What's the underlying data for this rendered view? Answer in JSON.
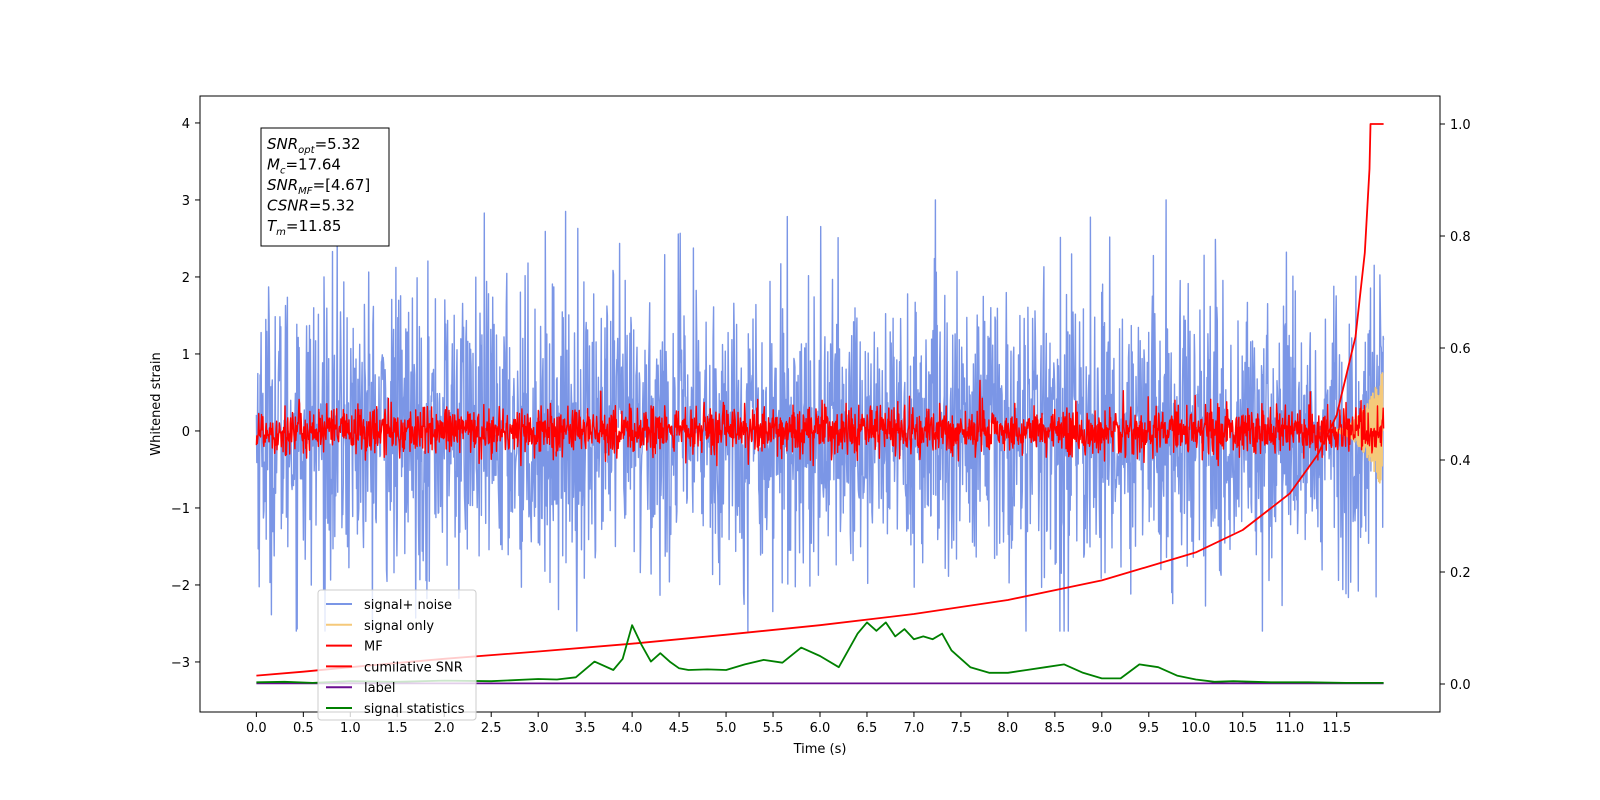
{
  "chart_data": {
    "type": "line",
    "title": "",
    "xlabel": "Time (s)",
    "ylabel": "Whitened strain",
    "y2label": "",
    "xlim": [
      -0.6,
      12.6
    ],
    "ylim": [
      -3.65,
      4.35
    ],
    "y2lim": [
      -0.05,
      1.05
    ],
    "x_ticks": [
      0.0,
      0.5,
      1.0,
      1.5,
      2.0,
      2.5,
      3.0,
      3.5,
      4.0,
      4.5,
      5.0,
      5.5,
      6.0,
      6.5,
      7.0,
      7.5,
      8.0,
      8.5,
      9.0,
      9.5,
      10.0,
      10.5,
      11.0,
      11.5
    ],
    "x_tick_labels": [
      "0.0",
      "0.5",
      "1.0",
      "1.5",
      "2.0",
      "2.5",
      "3.0",
      "3.5",
      "4.0",
      "4.5",
      "5.0",
      "5.5",
      "6.0",
      "6.5",
      "7.0",
      "7.5",
      "8.0",
      "8.5",
      "9.0",
      "9.5",
      "10.0",
      "10.5",
      "11.0",
      "11.5"
    ],
    "y_ticks": [
      -3,
      -2,
      -1,
      0,
      1,
      2,
      3,
      4
    ],
    "y_tick_labels": [
      "−3",
      "−2",
      "−1",
      "0",
      "1",
      "2",
      "3",
      "4"
    ],
    "y2_ticks": [
      0.0,
      0.2,
      0.4,
      0.6,
      0.8,
      1.0
    ],
    "y2_tick_labels": [
      "0.0",
      "0.2",
      "0.4",
      "0.6",
      "0.8",
      "1.0"
    ],
    "grid": false,
    "legend_position": "lower-left",
    "annotation": {
      "lines": [
        {
          "base": "SNR",
          "sub": "opt",
          "rest": "=5.32"
        },
        {
          "base": "M",
          "sub": "c",
          "rest": "=17.64"
        },
        {
          "base": "SNR",
          "sub": "MF",
          "rest": "=[4.67]"
        },
        {
          "base": "CSNR",
          "sub": "",
          "rest": "=5.32"
        },
        {
          "base": "T",
          "sub": "m",
          "rest": "=11.85"
        }
      ]
    },
    "series": [
      {
        "name": "signal+ noise",
        "color": "#7b96e6",
        "axis": "left",
        "kind": "noise",
        "x_range": [
          0.0,
          12.0
        ],
        "sigma": 0.95,
        "envelope": [
          -2.6,
          3.0
        ],
        "points": 2400
      },
      {
        "name": "signal only",
        "color": "#f5c97a",
        "axis": "left",
        "kind": "chirp",
        "x_range": [
          11.3,
          11.99
        ],
        "amplitude_end": 0.8,
        "points": 200
      },
      {
        "name": "MF",
        "color": "#ff0000",
        "axis": "left",
        "kind": "noise",
        "x_range": [
          0.0,
          12.0
        ],
        "sigma": 0.16,
        "envelope": [
          -0.45,
          0.9
        ],
        "points": 2400
      },
      {
        "name": "cumilative SNR",
        "color": "#ff0000",
        "axis": "right",
        "kind": "curve",
        "x": [
          0.0,
          0.5,
          1.0,
          2.0,
          3.0,
          4.0,
          5.0,
          6.0,
          7.0,
          8.0,
          9.0,
          10.0,
          10.5,
          11.0,
          11.3,
          11.5,
          11.7,
          11.8,
          11.85,
          11.86,
          12.0
        ],
        "values": [
          0.015,
          0.022,
          0.03,
          0.045,
          0.058,
          0.072,
          0.088,
          0.105,
          0.125,
          0.15,
          0.185,
          0.235,
          0.275,
          0.34,
          0.41,
          0.48,
          0.62,
          0.77,
          0.92,
          1.0,
          1.0
        ]
      },
      {
        "name": "label",
        "color": "#6a0d91",
        "axis": "right",
        "kind": "curve",
        "x": [
          0.0,
          12.0
        ],
        "values": [
          0.001,
          0.001
        ]
      },
      {
        "name": "signal statistics",
        "color": "#008000",
        "axis": "right",
        "kind": "curve",
        "x": [
          0.0,
          0.3,
          0.6,
          1.0,
          1.5,
          2.0,
          2.5,
          3.0,
          3.2,
          3.4,
          3.6,
          3.8,
          3.9,
          4.0,
          4.1,
          4.2,
          4.3,
          4.4,
          4.5,
          4.6,
          4.8,
          5.0,
          5.2,
          5.4,
          5.6,
          5.8,
          6.0,
          6.2,
          6.4,
          6.5,
          6.6,
          6.7,
          6.8,
          6.9,
          7.0,
          7.1,
          7.2,
          7.3,
          7.4,
          7.6,
          7.8,
          8.0,
          8.2,
          8.4,
          8.6,
          8.8,
          9.0,
          9.2,
          9.4,
          9.6,
          9.8,
          10.0,
          10.2,
          10.4,
          10.8,
          11.2,
          11.6,
          12.0
        ],
        "values": [
          0.003,
          0.004,
          0.002,
          0.005,
          0.004,
          0.006,
          0.005,
          0.009,
          0.008,
          0.012,
          0.04,
          0.025,
          0.045,
          0.105,
          0.07,
          0.04,
          0.055,
          0.04,
          0.028,
          0.025,
          0.026,
          0.025,
          0.035,
          0.043,
          0.038,
          0.065,
          0.05,
          0.03,
          0.09,
          0.11,
          0.095,
          0.11,
          0.085,
          0.098,
          0.08,
          0.085,
          0.08,
          0.09,
          0.06,
          0.03,
          0.02,
          0.02,
          0.025,
          0.03,
          0.035,
          0.02,
          0.01,
          0.01,
          0.035,
          0.03,
          0.015,
          0.008,
          0.004,
          0.005,
          0.003,
          0.003,
          0.002,
          0.002
        ]
      }
    ]
  }
}
